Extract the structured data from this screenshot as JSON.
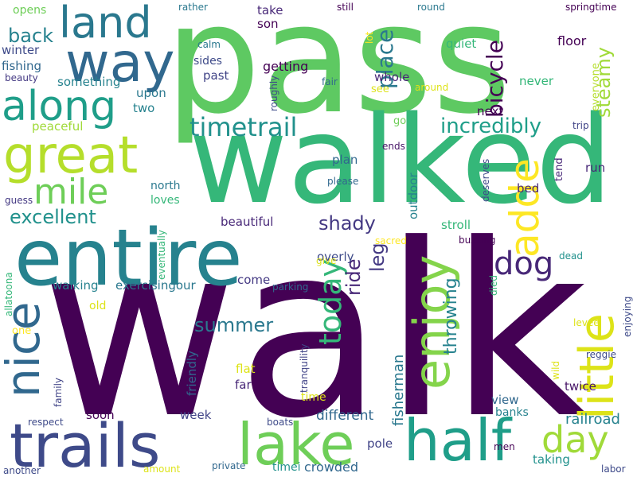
{
  "word_cloud": {
    "background": "#ffffff",
    "words": [
      {
        "text": "walk",
        "color": "#440154"
      },
      {
        "text": "pass",
        "color": "#5ec962"
      },
      {
        "text": "walked",
        "color": "#35b779"
      },
      {
        "text": "entire",
        "color": "#26828e"
      },
      {
        "text": "trails",
        "color": "#3e4a89"
      },
      {
        "text": "lake",
        "color": "#6ece58"
      },
      {
        "text": "half",
        "color": "#1f9e89"
      },
      {
        "text": "way",
        "color": "#31688e"
      },
      {
        "text": "land",
        "color": "#2a788e"
      },
      {
        "text": "along",
        "color": "#1f9e89"
      },
      {
        "text": "great",
        "color": "#b5de2b"
      },
      {
        "text": "mile",
        "color": "#6ece58"
      },
      {
        "text": "little",
        "color": "#dde318"
      },
      {
        "text": "enjoy",
        "color": "#84d44b"
      },
      {
        "text": "nice",
        "color": "#31688e"
      },
      {
        "text": "adde",
        "color": "#fde725"
      },
      {
        "text": "day",
        "color": "#a0da39"
      },
      {
        "text": "dog",
        "color": "#482878"
      },
      {
        "text": "timetrail",
        "color": "#21918c"
      },
      {
        "text": "today",
        "color": "#35b779"
      },
      {
        "text": "excellent",
        "color": "#21918c"
      },
      {
        "text": "incredibly",
        "color": "#1f9e89"
      },
      {
        "text": "back",
        "color": "#26828e"
      },
      {
        "text": "bicycle",
        "color": "#440154"
      },
      {
        "text": "place",
        "color": "#2a788e"
      },
      {
        "text": "steamy",
        "color": "#a0da39"
      },
      {
        "text": "summer",
        "color": "#2a788e"
      },
      {
        "text": "shady",
        "color": "#443983"
      },
      {
        "text": "ride",
        "color": "#482878"
      },
      {
        "text": "leg",
        "color": "#443983"
      },
      {
        "text": "throwing",
        "color": "#26828e"
      },
      {
        "text": "fisherman",
        "color": "#2a788e"
      },
      {
        "text": "railroad",
        "color": "#26828e"
      },
      {
        "text": "different",
        "color": "#31688e"
      },
      {
        "text": "crowded",
        "color": "#31688e"
      },
      {
        "text": "getting",
        "color": "#440154"
      },
      {
        "text": "take",
        "color": "#482878"
      },
      {
        "text": "son",
        "color": "#440154"
      },
      {
        "text": "quiet",
        "color": "#35b779"
      },
      {
        "text": "whole",
        "color": "#482878"
      },
      {
        "text": "sides",
        "color": "#3e4a89"
      },
      {
        "text": "past",
        "color": "#414487"
      },
      {
        "text": "something",
        "color": "#26828e"
      },
      {
        "text": "upon",
        "color": "#2a788e"
      },
      {
        "text": "two",
        "color": "#26828e"
      },
      {
        "text": "winter",
        "color": "#3e4a89"
      },
      {
        "text": "fishing",
        "color": "#31688e"
      },
      {
        "text": "opens",
        "color": "#6ece58"
      },
      {
        "text": "peaceful",
        "color": "#a0da39"
      },
      {
        "text": "next",
        "color": "#440154"
      },
      {
        "text": "never",
        "color": "#35b779"
      },
      {
        "text": "everyone",
        "color": "#b5de2b"
      },
      {
        "text": "floor",
        "color": "#440154"
      },
      {
        "text": "plan",
        "color": "#31688e"
      },
      {
        "text": "north",
        "color": "#2a788e"
      },
      {
        "text": "loves",
        "color": "#35b779"
      },
      {
        "text": "beautiful",
        "color": "#482878"
      },
      {
        "text": "bed",
        "color": "#482878"
      },
      {
        "text": "run",
        "color": "#482878"
      },
      {
        "text": "stroll",
        "color": "#35b779"
      },
      {
        "text": "overly",
        "color": "#3e4a89"
      },
      {
        "text": "outdoor",
        "color": "#26828e"
      },
      {
        "text": "walking",
        "color": "#26828e"
      },
      {
        "text": "exercisingour",
        "color": "#2a788e"
      },
      {
        "text": "come",
        "color": "#443983"
      },
      {
        "text": "friendly",
        "color": "#31688e"
      },
      {
        "text": "flat",
        "color": "#dde318"
      },
      {
        "text": "far",
        "color": "#482878"
      },
      {
        "text": "view",
        "color": "#31688e"
      },
      {
        "text": "twice",
        "color": "#481668"
      },
      {
        "text": "banks",
        "color": "#26828e"
      },
      {
        "text": "week",
        "color": "#414487"
      },
      {
        "text": "soon",
        "color": "#440154"
      },
      {
        "text": "pole",
        "color": "#414487"
      },
      {
        "text": "taking",
        "color": "#21918c"
      },
      {
        "text": "go",
        "color": "#6ece58"
      },
      {
        "text": "see",
        "color": "#dde318"
      },
      {
        "text": "rather",
        "color": "#2a788e"
      },
      {
        "text": "still",
        "color": "#440154"
      },
      {
        "text": "round",
        "color": "#2a788e"
      },
      {
        "text": "springtime",
        "color": "#440154"
      },
      {
        "text": "calm",
        "color": "#2a788e"
      },
      {
        "text": "lot",
        "color": "#fde725"
      },
      {
        "text": "roughly",
        "color": "#3e4a89"
      },
      {
        "text": "fair",
        "color": "#31688e"
      },
      {
        "text": "around",
        "color": "#dde318"
      },
      {
        "text": "beauty",
        "color": "#443983"
      },
      {
        "text": "trip",
        "color": "#414487"
      },
      {
        "text": "ends",
        "color": "#481668"
      },
      {
        "text": "deserves",
        "color": "#3e4a89"
      },
      {
        "text": "tend",
        "color": "#482878"
      },
      {
        "text": "please",
        "color": "#31688e"
      },
      {
        "text": "guess",
        "color": "#443983"
      },
      {
        "text": "sacred",
        "color": "#fde725"
      },
      {
        "text": "give",
        "color": "#dde318"
      },
      {
        "text": "buzzing",
        "color": "#440154"
      },
      {
        "text": "dead",
        "color": "#21918c"
      },
      {
        "text": "eventually",
        "color": "#35b779"
      },
      {
        "text": "parking",
        "color": "#31688e"
      },
      {
        "text": "tranquility",
        "color": "#414487"
      },
      {
        "text": "old",
        "color": "#dde318"
      },
      {
        "text": "allatoona",
        "color": "#35b779"
      },
      {
        "text": "one",
        "color": "#fde725"
      },
      {
        "text": "family",
        "color": "#414487"
      },
      {
        "text": "time",
        "color": "#dde318"
      },
      {
        "text": "respect",
        "color": "#3e4a89"
      },
      {
        "text": "boats",
        "color": "#3e4a89"
      },
      {
        "text": "private",
        "color": "#31688e"
      },
      {
        "text": "amount",
        "color": "#dde318"
      },
      {
        "text": "timei",
        "color": "#21918c"
      },
      {
        "text": "another",
        "color": "#3e4a89"
      },
      {
        "text": "men",
        "color": "#440154"
      },
      {
        "text": "labor",
        "color": "#3e4a89"
      },
      {
        "text": "died",
        "color": "#35b779"
      },
      {
        "text": "wild",
        "color": "#dde318"
      },
      {
        "text": "levee",
        "color": "#dde318"
      },
      {
        "text": "reggie",
        "color": "#3e4a89"
      },
      {
        "text": "enjoying",
        "color": "#3e4a89"
      }
    ]
  }
}
